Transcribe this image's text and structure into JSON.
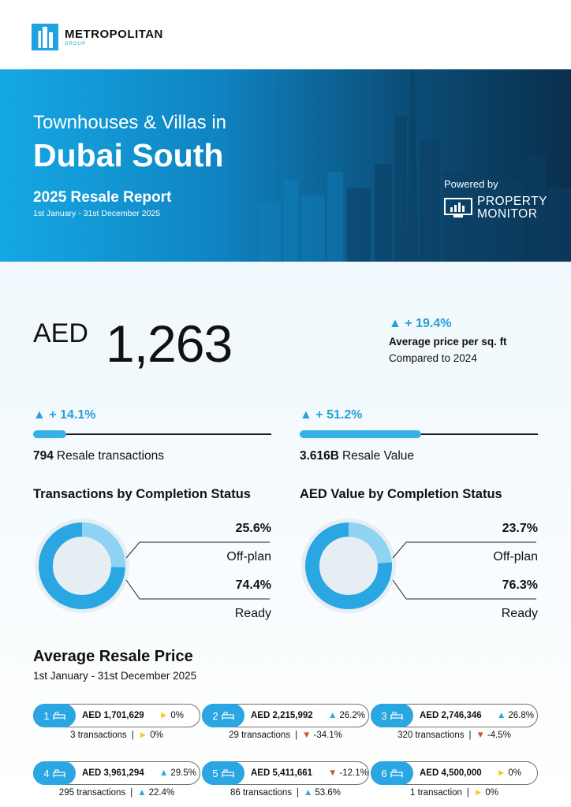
{
  "brand": {
    "name": "METROPOLITAN",
    "sub": "GROUP"
  },
  "hero": {
    "line1": "Townhouses & Villas in",
    "line2": "Dubai South",
    "report_title": "2025 Resale Report",
    "dates": "1st January - 31st December 2025",
    "powered_by": "Powered by",
    "partner_line1": "PROPERTY",
    "partner_line2": "MONITOR"
  },
  "price_per_sqft": {
    "currency": "AED",
    "value": "1,263",
    "change": "+ 19.4%",
    "label": "Average price per sq. ft",
    "compare": "Compared to 2024"
  },
  "transactions": {
    "change": "+ 14.1%",
    "count": "794",
    "label": "Resale transactions",
    "fill_fraction": 0.14
  },
  "resale_value": {
    "change": "+ 51.2%",
    "amount": "3.616B",
    "label": "Resale Value",
    "fill_fraction": 0.51
  },
  "completion": [
    {
      "title": "Transactions by Completion Status",
      "offplan_pct": "25.6%",
      "offplan_label": "Off-plan",
      "offplan_value": 25.6,
      "ready_pct": "74.4%",
      "ready_label": "Ready",
      "ready_value": 74.4
    },
    {
      "title": "AED Value by Completion Status",
      "offplan_pct": "23.7%",
      "offplan_label": "Off-plan",
      "offplan_value": 23.7,
      "ready_pct": "76.3%",
      "ready_label": "Ready",
      "ready_value": 76.3
    }
  ],
  "avg_price": {
    "title": "Average Resale Price",
    "dates": "1st January - 31st December 2025",
    "items": [
      {
        "beds": "1",
        "price": "AED 1,701,629",
        "price_change": "0%",
        "price_dir": "flat",
        "transactions": "3",
        "tx_label": "transactions",
        "tx_change": "0%",
        "tx_dir": "flat"
      },
      {
        "beds": "2",
        "price": "AED 2,215,992",
        "price_change": "26.2%",
        "price_dir": "up",
        "transactions": "29",
        "tx_label": "transactions",
        "tx_change": "-34.1%",
        "tx_dir": "down"
      },
      {
        "beds": "3",
        "price": "AED 2,746,346",
        "price_change": "26.8%",
        "price_dir": "up",
        "transactions": "320",
        "tx_label": "transactions",
        "tx_change": "-4.5%",
        "tx_dir": "down"
      },
      {
        "beds": "4",
        "price": "AED 3,961,294",
        "price_change": "29.5%",
        "price_dir": "up",
        "transactions": "295",
        "tx_label": "transactions",
        "tx_change": "22.4%",
        "tx_dir": "up"
      },
      {
        "beds": "5",
        "price": "AED 5,411,661",
        "price_change": "-12.1%",
        "price_dir": "down",
        "transactions": "86",
        "tx_label": "transactions",
        "tx_change": "53.6%",
        "tx_dir": "up"
      },
      {
        "beds": "6",
        "price": "AED 4,500,000",
        "price_change": "0%",
        "price_dir": "flat",
        "transactions": "1",
        "tx_label": "transaction",
        "tx_change": "0%",
        "tx_dir": "flat"
      }
    ]
  },
  "colors": {
    "accent": "#2aa6e2",
    "light": "#8fd3f2",
    "down": "#c8552f",
    "flat": "#f2cc1a"
  }
}
